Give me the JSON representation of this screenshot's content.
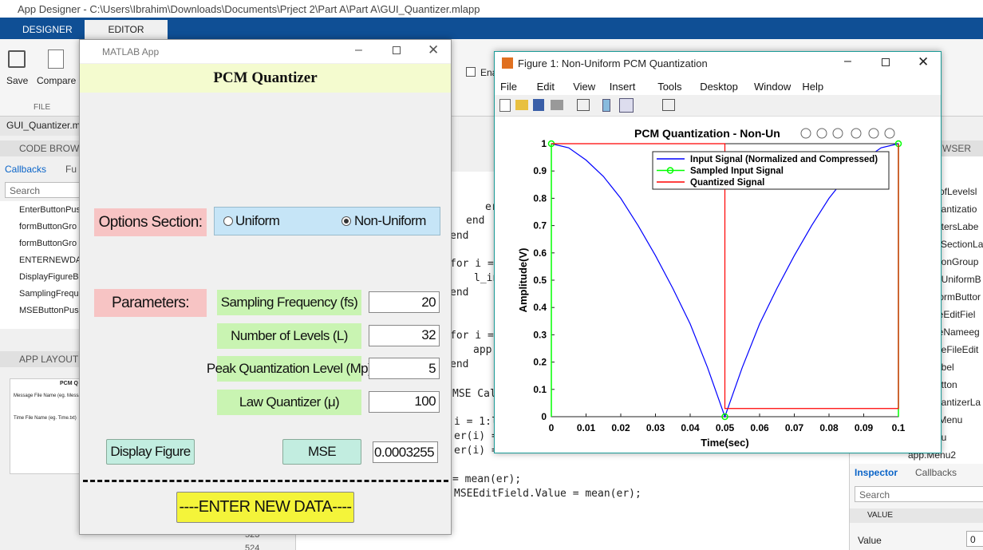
{
  "title_bar": "App Designer - C:\\Users\\Ibrahim\\Downloads\\Documents\\Prject 2\\Part A\\Part A\\GUI_Quantizer.mlapp",
  "tabs": [
    "DESIGNER",
    "EDITOR"
  ],
  "toolstrip": {
    "save": "Save",
    "compare": "Compare",
    "section": "FILE",
    "enable": "Ena"
  },
  "file_tab": "GUI_Quantizer.mla",
  "code_browser": {
    "title": "CODE BROW",
    "tabs": [
      "Callbacks",
      "Fu"
    ],
    "search": "Search",
    "items": [
      "EnterButtonPus",
      "formButtonGro",
      "formButtonGro",
      "ENTERNEWDA",
      "DisplayFigureB",
      "SamplingFrequ",
      "MSEButtonPus"
    ]
  },
  "app_layout": {
    "title": "APP LAYOUT",
    "preview": [
      "PCM Q",
      "Message File Name (eg. Messag",
      "Time File Name (eg. Time.txt)"
    ]
  },
  "code": {
    "lines": [
      "er",
      "end",
      "end",
      "for i =",
      "l_in",
      "end",
      "for i =",
      "app.",
      "end",
      "MSE Cal",
      "i = 1:l",
      "er(i) =",
      "er(i) =",
      "= mean(er);",
      "MSEEditField.Value = mean(er);"
    ],
    "line_numbers": [
      "523",
      "524"
    ]
  },
  "browser": {
    "title": "WSER",
    "items": [
      "rofLevelsl",
      "uantizatio",
      "etersLabe",
      "sSectionLa",
      "ttonGroup",
      "nUniformB",
      "formButtor",
      "leEditFiel",
      "leNameeg",
      "geFileEdit",
      "abel",
      "utton",
      "uantizerLa",
      "tMenu",
      "nu",
      "app.Menu2"
    ]
  },
  "inspector": {
    "tabs": [
      "Inspector",
      "Callbacks"
    ],
    "search": "Search",
    "section": "VALUE",
    "label": "Value",
    "value": "0"
  },
  "app_window": {
    "title": "MATLAB App",
    "header": "PCM Quantizer",
    "options_label": "Options Section:",
    "options": [
      "Uniform",
      "Non-Uniform"
    ],
    "parameters_label": "Parameters:",
    "parameters": [
      {
        "label": "Sampling Frequency (fs)",
        "value": "20"
      },
      {
        "label": "Number of Levels (L)",
        "value": "32"
      },
      {
        "label": "Peak Quantization Level (Mp)",
        "value": "5"
      },
      {
        "label": "Law Quantizer (μ)",
        "value": "100"
      }
    ],
    "display_button": "Display Figure",
    "mse_button": "MSE",
    "mse_value": "0.0003255",
    "enter_button": "----ENTER NEW DATA----"
  },
  "figure_window": {
    "title": "Figure 1: Non-Uniform PCM Quantization",
    "menu": [
      "File",
      "Edit",
      "View",
      "Insert",
      "Tools",
      "Desktop",
      "Window",
      "Help"
    ],
    "chart_data": {
      "type": "line",
      "title": "PCM Quantization - Non-Un",
      "xlabel": "Time(sec)",
      "ylabel": "Amplitude(V)",
      "xlim": [
        0,
        0.1
      ],
      "ylim": [
        0,
        1
      ],
      "xticks": [
        0,
        0.01,
        0.02,
        0.03,
        0.04,
        0.05,
        0.06,
        0.07,
        0.08,
        0.09,
        0.1
      ],
      "yticks": [
        0,
        0.1,
        0.2,
        0.3,
        0.4,
        0.5,
        0.6,
        0.7,
        0.8,
        0.9,
        1
      ],
      "grid": false,
      "series": [
        {
          "name": "Input Signal (Normalized and Compressed)",
          "color": "#0000ff",
          "x": [
            0,
            0.005,
            0.01,
            0.015,
            0.02,
            0.025,
            0.03,
            0.035,
            0.04,
            0.045,
            0.05,
            0.055,
            0.06,
            0.065,
            0.07,
            0.075,
            0.08,
            0.085,
            0.09,
            0.095,
            0.1
          ],
          "values": [
            1,
            0.985,
            0.94,
            0.88,
            0.8,
            0.7,
            0.59,
            0.47,
            0.34,
            0.18,
            0,
            0.18,
            0.34,
            0.47,
            0.59,
            0.7,
            0.8,
            0.88,
            0.94,
            0.985,
            1
          ]
        },
        {
          "name": "Sampled Input Signal",
          "color": "#00ff00",
          "style": "stem",
          "x": [
            0,
            0.05,
            0.1
          ],
          "values": [
            1,
            0,
            1
          ]
        },
        {
          "name": "Quantized Signal",
          "color": "#ff0000",
          "x": [
            0,
            0.05,
            0.05,
            0.1,
            0.1
          ],
          "values": [
            1,
            1,
            0.03,
            0.03,
            1
          ]
        }
      ]
    }
  }
}
